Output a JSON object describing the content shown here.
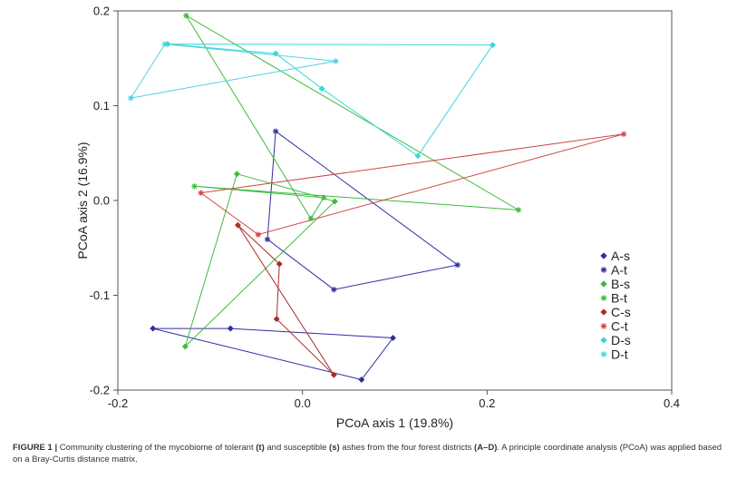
{
  "chart_data": {
    "type": "scatter",
    "title": "",
    "xlabel": "PCoA axis 1 (19.8%)",
    "ylabel": "PCoA axis 2 (16.9%)",
    "xlim": [
      -0.2,
      0.4
    ],
    "ylim": [
      -0.2,
      0.2
    ],
    "x_ticks": [
      -0.2,
      0.0,
      0.2,
      0.4
    ],
    "x_tick_labels": [
      "-0.2",
      "0.0",
      "0.2",
      "0.4"
    ],
    "y_ticks": [
      -0.2,
      -0.1,
      0.0,
      0.1,
      0.2
    ],
    "y_tick_labels": [
      "-0.2",
      "-0.1",
      "0.0",
      "0.1",
      "0.2"
    ],
    "grid": false,
    "legend_position": "right",
    "series": [
      {
        "name": "A-s",
        "color": "#2e2ea0",
        "marker": "diamond",
        "closed": true,
        "points": [
          [
            -0.162,
            -0.135
          ],
          [
            -0.078,
            -0.135
          ],
          [
            0.098,
            -0.145
          ],
          [
            0.064,
            -0.189
          ],
          [
            -0.162,
            -0.135
          ]
        ]
      },
      {
        "name": "A-t",
        "color": "#2e2ea0",
        "marker": "asterisk",
        "closed": true,
        "points": [
          [
            -0.029,
            0.073
          ],
          [
            0.168,
            -0.068
          ],
          [
            0.034,
            -0.094
          ],
          [
            -0.038,
            -0.041
          ],
          [
            -0.029,
            0.073
          ]
        ]
      },
      {
        "name": "B-s",
        "color": "#3dbb3d",
        "marker": "diamond",
        "closed": true,
        "points": [
          [
            -0.071,
            0.028
          ],
          [
            0.035,
            -0.001
          ],
          [
            -0.127,
            -0.154
          ],
          [
            -0.071,
            0.028
          ]
        ]
      },
      {
        "name": "B-t",
        "color": "#3dbb3d",
        "marker": "asterisk",
        "closed": true,
        "points": [
          [
            -0.126,
            0.195
          ],
          [
            0.234,
            -0.01
          ],
          [
            -0.117,
            0.015
          ],
          [
            0.023,
            0.003
          ],
          [
            0.009,
            -0.019
          ],
          [
            -0.126,
            0.195
          ]
        ]
      },
      {
        "name": "C-s",
        "color": "#b02a2a",
        "marker": "diamond",
        "closed": true,
        "points": [
          [
            -0.07,
            -0.026
          ],
          [
            0.034,
            -0.184
          ],
          [
            -0.028,
            -0.125
          ],
          [
            -0.025,
            -0.067
          ],
          [
            -0.07,
            -0.026
          ]
        ]
      },
      {
        "name": "C-t",
        "color": "#cf4545",
        "marker": "asterisk",
        "closed": true,
        "points": [
          [
            -0.11,
            0.008
          ],
          [
            0.348,
            0.07
          ],
          [
            -0.048,
            -0.036
          ],
          [
            -0.11,
            0.008
          ]
        ]
      },
      {
        "name": "D-s",
        "color": "#3ad7dd",
        "marker": "diamond",
        "closed": true,
        "points": [
          [
            -0.146,
            0.165
          ],
          [
            0.206,
            0.164
          ],
          [
            0.125,
            0.047
          ],
          [
            0.021,
            0.118
          ],
          [
            -0.029,
            0.155
          ],
          [
            -0.146,
            0.165
          ]
        ]
      },
      {
        "name": "D-t",
        "color": "#4ed3dd",
        "marker": "asterisk",
        "closed": true,
        "points": [
          [
            -0.186,
            0.108
          ],
          [
            -0.149,
            0.165
          ],
          [
            0.036,
            0.147
          ],
          [
            -0.186,
            0.108
          ]
        ]
      }
    ]
  },
  "caption": {
    "label": "FIGURE 1 |",
    "part1": " Community clustering of the mycobiome of tolerant ",
    "tolerant": "(t)",
    "part2": " and susceptible ",
    "susceptible": "(s)",
    "part3": " ashes from the four forest districts ",
    "districts": "(A–D)",
    "part4": ". A principle coordinate analysis (PCoA) was applied based on a Bray-Curtis distance matrix."
  }
}
